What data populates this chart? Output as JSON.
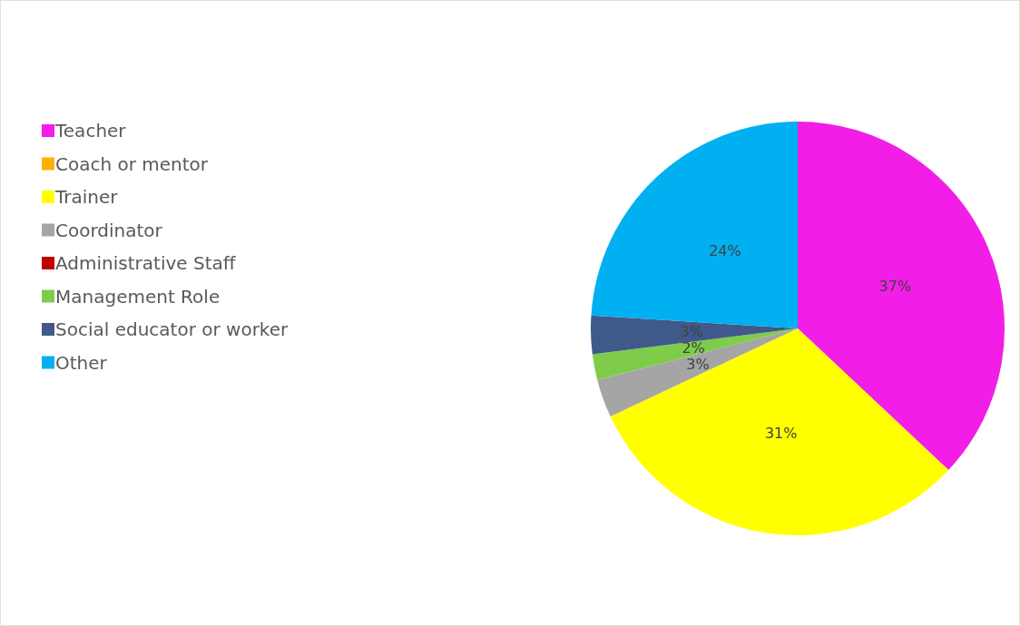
{
  "chart_data": {
    "type": "pie",
    "categories": [
      "Teacher",
      "Coach or mentor",
      "Trainer",
      "Coordinator",
      "Administrative Staff",
      "Management Role",
      "Social educator or worker",
      "Other"
    ],
    "values": [
      37,
      0,
      31,
      3,
      0,
      2,
      3,
      24
    ],
    "colors": [
      "#f21ee8",
      "#ffb000",
      "#ffff00",
      "#a5a5a5",
      "#c00000",
      "#7fcc4a",
      "#3f5a8a",
      "#00b0f0"
    ],
    "value_labels": [
      "37%",
      null,
      "31%",
      "3%",
      null,
      "2%",
      "3%",
      "24%"
    ],
    "legend": "left"
  }
}
